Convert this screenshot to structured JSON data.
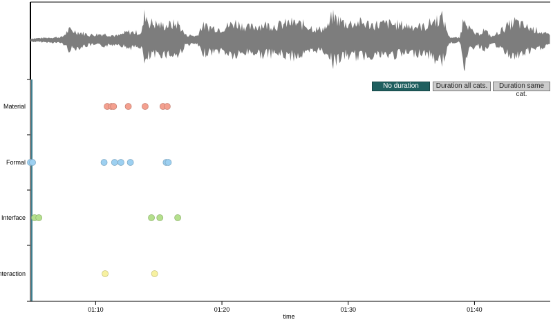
{
  "buttons": {
    "no_duration": "No duration",
    "duration_all": "Duration all cats.",
    "duration_same": "Duration same cat."
  },
  "chart_data": {
    "type": "scatter",
    "xlabel": "time",
    "x_ticks": [
      "01:10",
      "01:20",
      "01:30",
      "01:40"
    ],
    "x_tick_seconds": [
      4210,
      4810,
      5410,
      6010
    ],
    "xlim_seconds": [
      3900,
      6370
    ],
    "categories": [
      "Material",
      "Formal",
      "Interface",
      "Interaction"
    ],
    "series": [
      {
        "name": "Material",
        "color": "#f4a08f",
        "x_seconds": [
          4265,
          4285,
          4295,
          4365,
          4445,
          4530,
          4550
        ]
      },
      {
        "name": "Formal",
        "color": "#9dd0f1",
        "x_seconds": [
          3900,
          3910,
          4250,
          4300,
          4330,
          4375,
          4545,
          4555
        ]
      },
      {
        "name": "Interface",
        "color": "#b5e08d",
        "x_seconds": [
          3920,
          3940,
          4475,
          4515,
          4600
        ]
      },
      {
        "name": "Interaction",
        "color": "#f7f1a0",
        "x_seconds": [
          4255,
          4490
        ]
      }
    ]
  },
  "waveform": {
    "color": "#7d7d7d"
  }
}
